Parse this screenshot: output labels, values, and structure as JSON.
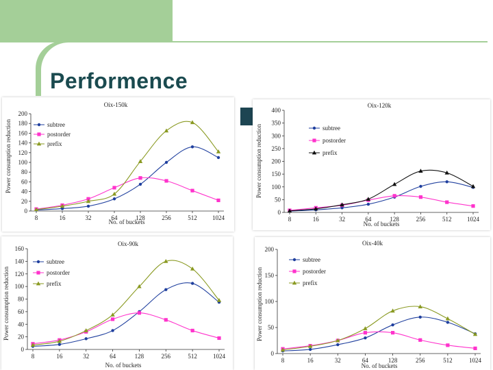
{
  "slide": {
    "title": "Performence"
  },
  "colors": {
    "subtree": "#1f3f9e",
    "postorder": "#ff33cc",
    "prefix": "#8a9a22",
    "prefix_alt": "#111111",
    "title": "#1a4a4f",
    "header_green": "#a4cf98"
  },
  "chart_data": [
    {
      "type": "line",
      "title": "Oix-150k",
      "xlabel": "No. of buckets",
      "ylabel": "Power consumption reduction",
      "categories": [
        "8",
        "16",
        "32",
        "64",
        "128",
        "256",
        "512",
        "1024"
      ],
      "ylim": [
        0,
        200
      ],
      "yticks": [
        0,
        20,
        40,
        60,
        80,
        100,
        120,
        140,
        160,
        180,
        200
      ],
      "legend_position": "top-left",
      "series": [
        {
          "name": "subtree",
          "values": [
            2,
            5,
            10,
            25,
            55,
            100,
            132,
            110
          ]
        },
        {
          "name": "postorder",
          "values": [
            4,
            12,
            25,
            48,
            68,
            62,
            42,
            22
          ]
        },
        {
          "name": "prefix",
          "values": [
            3,
            10,
            20,
            35,
            102,
            165,
            182,
            122
          ]
        }
      ]
    },
    {
      "type": "line",
      "title": "Oix-120k",
      "xlabel": "No. of buckets",
      "ylabel": "Power consumption reduction",
      "categories": [
        "8",
        "16",
        "32",
        "64",
        "128",
        "256",
        "512",
        "1024"
      ],
      "ylim": [
        0,
        400
      ],
      "yticks": [
        0,
        50,
        100,
        150,
        200,
        250,
        300,
        350,
        400
      ],
      "legend_position": "top-left",
      "series": [
        {
          "name": "subtree",
          "values": [
            5,
            10,
            18,
            32,
            60,
            102,
            120,
            98
          ]
        },
        {
          "name": "postorder",
          "values": [
            8,
            18,
            28,
            48,
            65,
            60,
            40,
            25
          ]
        },
        {
          "name": "prefix",
          "values": [
            6,
            14,
            30,
            52,
            110,
            162,
            155,
            102
          ]
        }
      ]
    },
    {
      "type": "line",
      "title": "Oix-90k",
      "xlabel": "No. of buckets",
      "ylabel": "Power consumption reduction",
      "categories": [
        "8",
        "16",
        "32",
        "64",
        "128",
        "256",
        "512",
        "1024"
      ],
      "ylim": [
        0,
        160
      ],
      "yticks": [
        0,
        20,
        40,
        60,
        80,
        100,
        120,
        140,
        160
      ],
      "legend_position": "top-left",
      "series": [
        {
          "name": "subtree",
          "values": [
            5,
            8,
            17,
            30,
            60,
            95,
            105,
            75
          ]
        },
        {
          "name": "postorder",
          "values": [
            9,
            15,
            28,
            48,
            58,
            47,
            30,
            18
          ]
        },
        {
          "name": "prefix",
          "values": [
            7,
            13,
            30,
            55,
            100,
            140,
            128,
            78
          ]
        }
      ]
    },
    {
      "type": "line",
      "title": "Oix-40k",
      "xlabel": "No. of buckets",
      "ylabel": "Power consumption reduction",
      "categories": [
        "8",
        "16",
        "32",
        "64",
        "128",
        "256",
        "512",
        "1024"
      ],
      "ylim": [
        0,
        200
      ],
      "yticks": [
        0,
        50,
        100,
        150,
        200
      ],
      "legend_position": "top-left",
      "series": [
        {
          "name": "subtree",
          "values": [
            5,
            8,
            17,
            30,
            55,
            70,
            60,
            38
          ]
        },
        {
          "name": "postorder",
          "values": [
            9,
            15,
            25,
            40,
            40,
            26,
            16,
            10
          ]
        },
        {
          "name": "prefix",
          "values": [
            7,
            14,
            25,
            48,
            82,
            90,
            67,
            37
          ]
        }
      ]
    }
  ]
}
